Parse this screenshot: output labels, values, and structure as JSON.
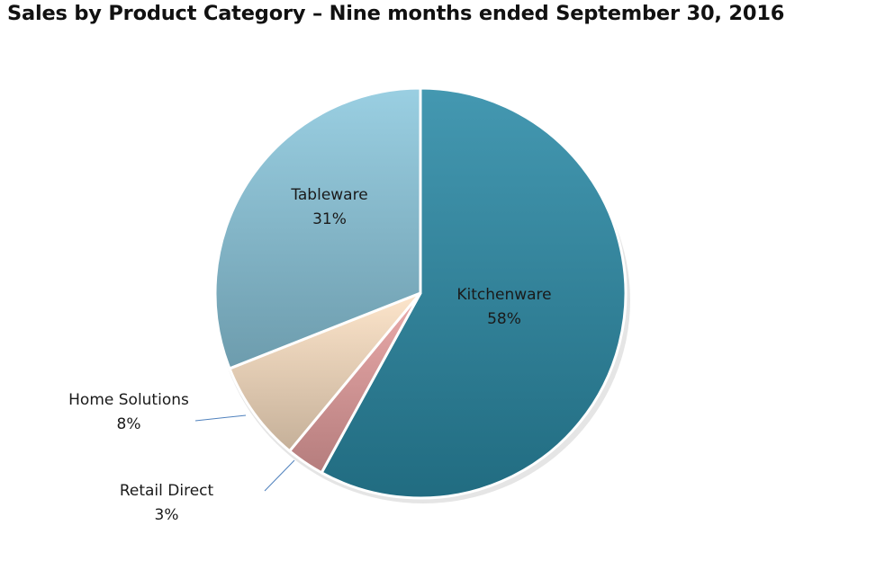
{
  "chart_data": {
    "type": "pie",
    "title": "Sales by Product Category – Nine months ended September 30, 2016",
    "slices": [
      {
        "label": "Kitchenware",
        "value": 58,
        "value_label": "58%",
        "color": "#2a8aa6"
      },
      {
        "label": "Retail Direct",
        "value": 3,
        "value_label": "3%",
        "color": "#e8a0a0"
      },
      {
        "label": "Home Solutions",
        "value": 8,
        "value_label": "8%",
        "color": "#fde2c4"
      },
      {
        "label": "Tableware",
        "value": 31,
        "value_label": "31%",
        "color": "#8cc8de"
      }
    ],
    "start": "12 o'clock",
    "direction": "clockwise",
    "legend": "none",
    "labels": "on slices, with leader lines for small slices"
  }
}
